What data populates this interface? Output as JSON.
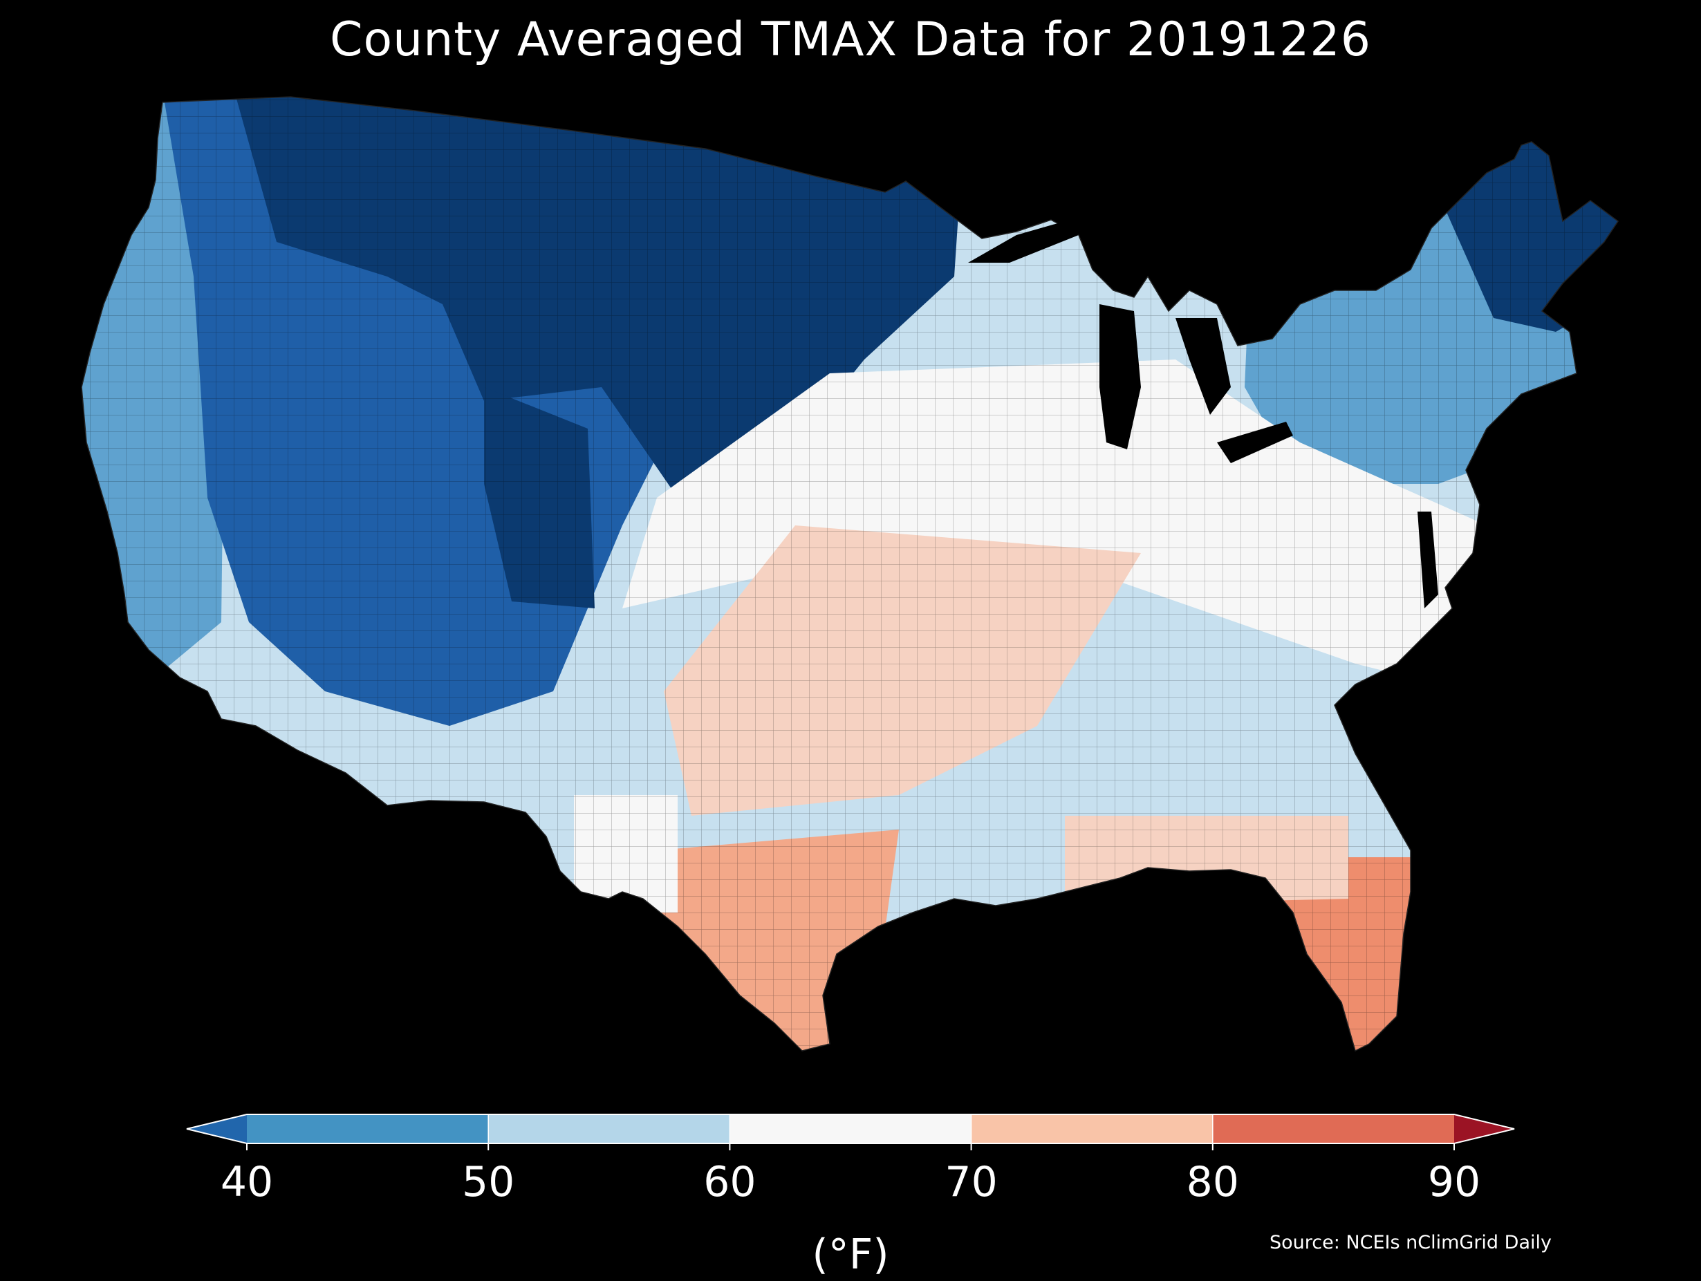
{
  "title": "County Averaged TMAX Data for 20191226",
  "colors": {
    "below_40": "#2166ac",
    "band_40_50": "#4393c3",
    "band_50_60": "#b4d6e9",
    "band_60_70": "#f7f7f7",
    "band_70_80": "#f9c4a8",
    "band_80_90": "#e06b55",
    "above_90": "#9b1324",
    "dark_blue": "#0b3a70",
    "mid_blue": "#1f5fa8",
    "light_blue": "#5fa2cf",
    "pale_blue": "#c7e0ef",
    "light_salmon": "#f6d2c2",
    "salmon": "#f3a889",
    "deep_salmon": "#ee8d6d"
  },
  "colorbar": {
    "ticks": [
      "40",
      "50",
      "60",
      "70",
      "80",
      "90"
    ],
    "unit": "(°F)",
    "extend": "both"
  },
  "source": "Source: NCEIs nClimGrid Daily"
}
